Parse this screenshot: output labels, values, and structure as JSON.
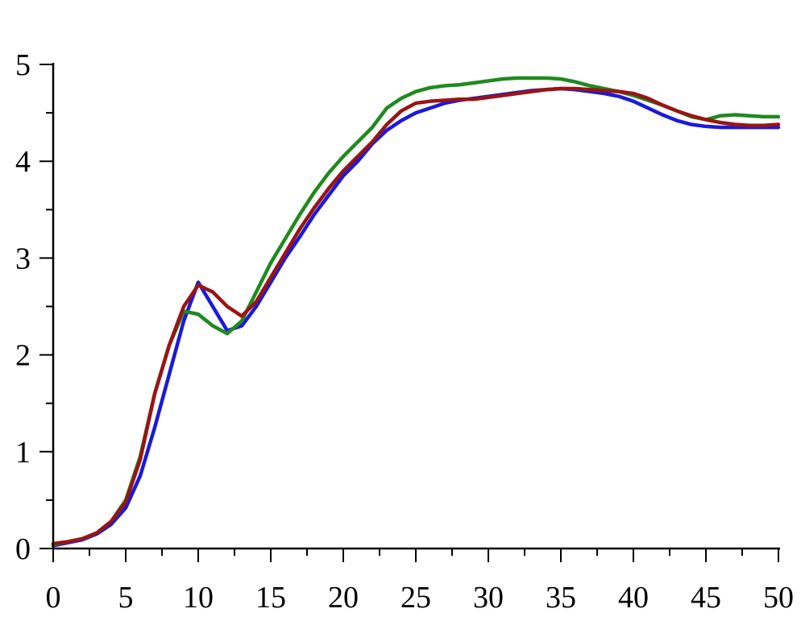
{
  "chart_data": {
    "type": "line",
    "title": "",
    "xlabel": "",
    "ylabel": "",
    "xlim": [
      0,
      50
    ],
    "ylim": [
      0,
      5
    ],
    "x_ticks_major": [
      0,
      5,
      10,
      15,
      20,
      25,
      30,
      35,
      40,
      45,
      50
    ],
    "x_tick_labels": [
      "0",
      "5",
      "10",
      "15",
      "20",
      "25",
      "30",
      "35",
      "40",
      "45",
      "50"
    ],
    "y_ticks_major": [
      0,
      1,
      2,
      3,
      4,
      5
    ],
    "y_tick_labels": [
      "0",
      "1",
      "2",
      "3",
      "4",
      "5"
    ],
    "grid": false,
    "legend": "none",
    "series": [
      {
        "color": "#1a1adb",
        "x": [
          0,
          1,
          2,
          3,
          4,
          5,
          6,
          7,
          8,
          9,
          10,
          11,
          12,
          13,
          14,
          15,
          16,
          17,
          18,
          19,
          20,
          21,
          22,
          23,
          24,
          25,
          26,
          27,
          28,
          29,
          30,
          31,
          32,
          33,
          34,
          35,
          36,
          37,
          38,
          39,
          40,
          41,
          42,
          43,
          44,
          45,
          46,
          47,
          48,
          49,
          50
        ],
        "y": [
          0.03,
          0.06,
          0.09,
          0.15,
          0.25,
          0.42,
          0.75,
          1.25,
          1.8,
          2.35,
          2.75,
          2.5,
          2.25,
          2.3,
          2.5,
          2.75,
          3.0,
          3.22,
          3.45,
          3.65,
          3.85,
          4.0,
          4.18,
          4.32,
          4.42,
          4.5,
          4.55,
          4.6,
          4.63,
          4.65,
          4.67,
          4.69,
          4.71,
          4.73,
          4.74,
          4.75,
          4.74,
          4.72,
          4.7,
          4.67,
          4.62,
          4.55,
          4.48,
          4.42,
          4.38,
          4.36,
          4.35,
          4.35,
          4.35,
          4.35,
          4.35
        ]
      },
      {
        "color": "#1f8a1f",
        "x": [
          0,
          1,
          2,
          3,
          4,
          5,
          6,
          7,
          8,
          9,
          10,
          11,
          12,
          13,
          14,
          15,
          16,
          17,
          18,
          19,
          20,
          21,
          22,
          23,
          24,
          25,
          26,
          27,
          28,
          29,
          30,
          31,
          32,
          33,
          34,
          35,
          36,
          37,
          38,
          39,
          40,
          41,
          42,
          43,
          44,
          45,
          46,
          47,
          48,
          49,
          50
        ],
        "y": [
          0.04,
          0.07,
          0.1,
          0.16,
          0.28,
          0.5,
          0.95,
          1.6,
          2.1,
          2.45,
          2.42,
          2.3,
          2.22,
          2.35,
          2.65,
          2.95,
          3.2,
          3.45,
          3.68,
          3.88,
          4.05,
          4.2,
          4.35,
          4.55,
          4.65,
          4.72,
          4.76,
          4.78,
          4.79,
          4.81,
          4.83,
          4.85,
          4.86,
          4.86,
          4.86,
          4.85,
          4.82,
          4.78,
          4.75,
          4.72,
          4.68,
          4.63,
          4.58,
          4.52,
          4.46,
          4.43,
          4.47,
          4.48,
          4.47,
          4.46,
          4.46
        ]
      },
      {
        "color": "#9a1414",
        "x": [
          0,
          1,
          2,
          3,
          4,
          5,
          6,
          7,
          8,
          9,
          10,
          11,
          12,
          13,
          14,
          15,
          16,
          17,
          18,
          19,
          20,
          21,
          22,
          23,
          24,
          25,
          26,
          27,
          28,
          29,
          30,
          31,
          32,
          33,
          34,
          35,
          36,
          37,
          38,
          39,
          40,
          41,
          42,
          43,
          44,
          45,
          46,
          47,
          48,
          49,
          50
        ],
        "y": [
          0.05,
          0.07,
          0.1,
          0.16,
          0.28,
          0.48,
          0.92,
          1.6,
          2.1,
          2.5,
          2.72,
          2.65,
          2.5,
          2.4,
          2.55,
          2.8,
          3.05,
          3.3,
          3.52,
          3.72,
          3.9,
          4.05,
          4.2,
          4.38,
          4.52,
          4.6,
          4.62,
          4.63,
          4.64,
          4.64,
          4.66,
          4.68,
          4.7,
          4.72,
          4.74,
          4.75,
          4.75,
          4.74,
          4.73,
          4.72,
          4.7,
          4.65,
          4.58,
          4.52,
          4.47,
          4.43,
          4.4,
          4.38,
          4.37,
          4.37,
          4.38
        ]
      }
    ]
  }
}
